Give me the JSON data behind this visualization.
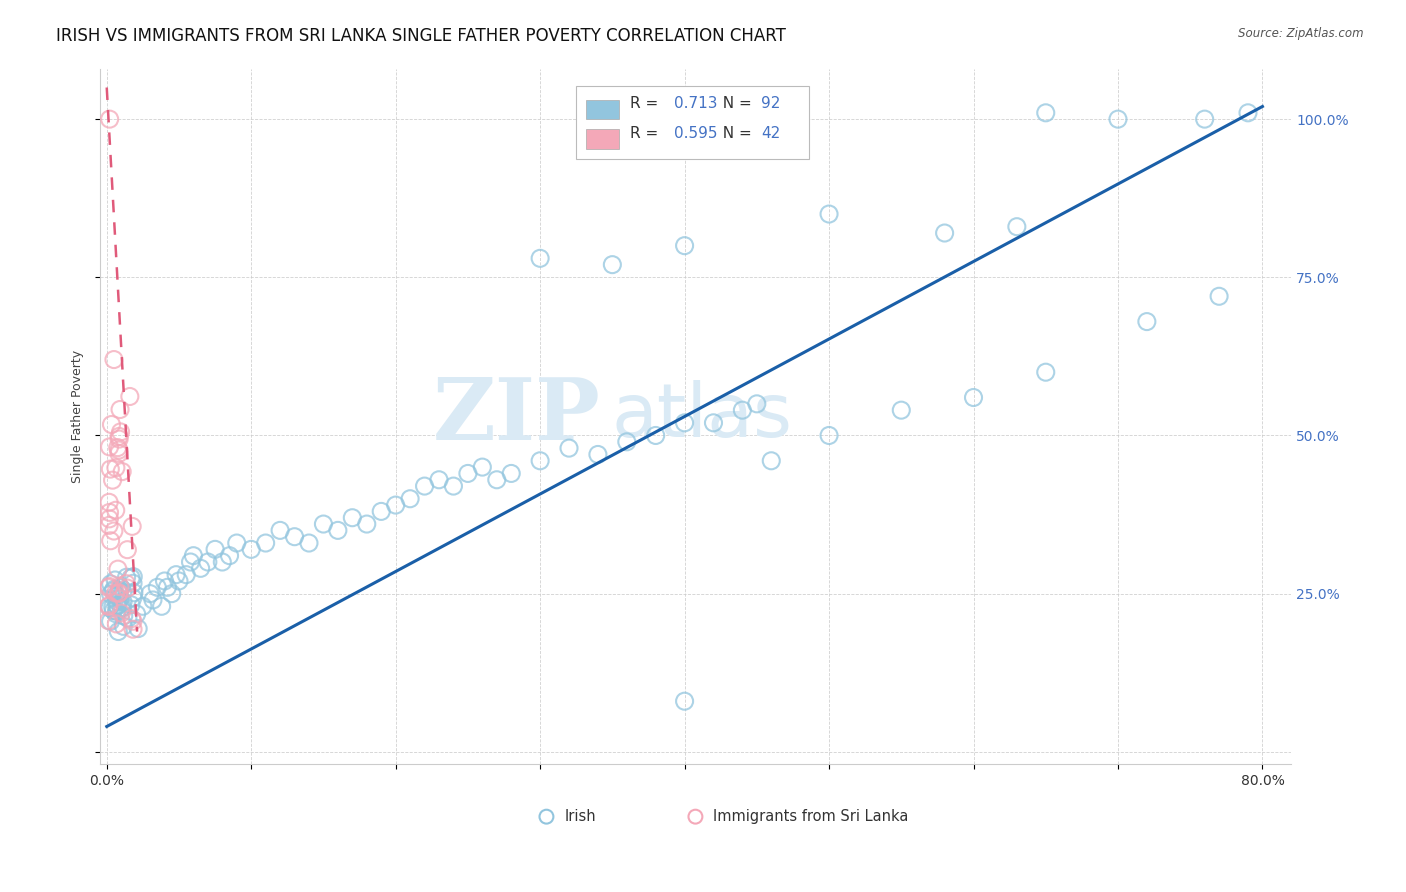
{
  "title": "IRISH VS IMMIGRANTS FROM SRI LANKA SINGLE FATHER POVERTY CORRELATION CHART",
  "source": "Source: ZipAtlas.com",
  "ylabel": "Single Father Poverty",
  "legend_irish_R": "0.713",
  "legend_irish_N": "92",
  "legend_sri_R": "0.595",
  "legend_sri_N": "42",
  "irish_color": "#92c5de",
  "sri_color": "#f4a8b8",
  "irish_line_color": "#1a5fa8",
  "sri_line_color": "#e05a7a",
  "background_color": "#ffffff",
  "watermark_zip": "ZIP",
  "watermark_atlas": "atlas",
  "title_fontsize": 12,
  "axis_label_fontsize": 9,
  "tick_fontsize": 10,
  "right_tick_color": "#4472c4",
  "xlim": [
    -0.005,
    0.82
  ],
  "ylim": [
    -0.02,
    1.08
  ],
  "irish_line_x0": 0.0,
  "irish_line_y0": 0.04,
  "irish_line_x1": 0.8,
  "irish_line_y1": 1.02,
  "sri_line_x0": 0.0,
  "sri_line_y0": 1.05,
  "sri_line_x1": 0.021,
  "sri_line_y1": 0.19
}
